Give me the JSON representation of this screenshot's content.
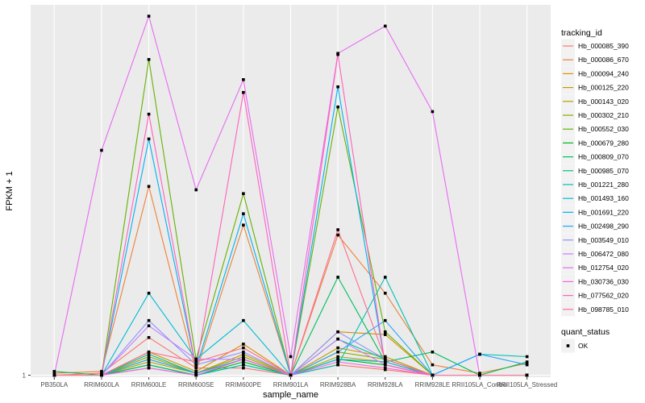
{
  "chart_data": {
    "type": "line",
    "xlabel": "sample_name",
    "ylabel": "FPKM + 1",
    "categories": [
      "PB350LA",
      "RRIM600LA",
      "RRIM600LE",
      "RRIM600SE",
      "RRIM600PE",
      "RRIM901LA",
      "RRIM928BA",
      "RRIM928LA",
      "RRIM928LE",
      "RRII105LA_Control",
      "RRII105LA_Stressed"
    ],
    "y_scale": "log",
    "y_ticks": [
      {
        "value": 1,
        "label": "1"
      }
    ],
    "ylim": [
      0.95,
      12000
    ],
    "grid": true,
    "legend_position": "right",
    "legend_title": "tracking_id",
    "series": [
      {
        "name": "Hb_000085_390",
        "color": "#F8766D",
        "values": [
          1,
          1.05,
          2.6,
          1.2,
          1.2,
          1,
          1.3,
          1.15,
          1,
          1,
          1
        ]
      },
      {
        "name": "Hb_000086_670",
        "color": "#EC8239",
        "values": [
          1.05,
          1.1,
          120,
          1.1,
          45,
          1,
          35,
          8,
          1.3,
          1.05,
          1.35
        ]
      },
      {
        "name": "Hb_000094_240",
        "color": "#DB8E00",
        "values": [
          1,
          1,
          1.8,
          1.1,
          2.2,
          1,
          3,
          2.8,
          1,
          1,
          1
        ]
      },
      {
        "name": "Hb_000125_220",
        "color": "#C79800",
        "values": [
          1,
          1,
          1.5,
          1.05,
          1.7,
          1,
          2,
          1.6,
          1,
          1,
          1
        ]
      },
      {
        "name": "Hb_000143_020",
        "color": "#AEA200",
        "values": [
          1,
          1,
          1.4,
          1.05,
          1.5,
          1,
          1.6,
          1.4,
          1,
          1,
          1
        ]
      },
      {
        "name": "Hb_000302_210",
        "color": "#8FAA00",
        "values": [
          1,
          1,
          1.6,
          1.05,
          1.6,
          1,
          1.8,
          1.5,
          1,
          1,
          1
        ]
      },
      {
        "name": "Hb_000552_030",
        "color": "#64B200",
        "values": [
          1,
          1,
          3000,
          1.5,
          100,
          1,
          900,
          3,
          1,
          1,
          1
        ]
      },
      {
        "name": "Hb_000679_280",
        "color": "#00B81B",
        "values": [
          1,
          1,
          1.3,
          1,
          1.4,
          1,
          1.5,
          1.3,
          1,
          1,
          1
        ]
      },
      {
        "name": "Hb_000809_070",
        "color": "#00BD5C",
        "values": [
          1.1,
          1,
          1.3,
          1,
          1.3,
          1,
          12,
          1.4,
          1.8,
          1,
          1.4
        ]
      },
      {
        "name": "Hb_000985_070",
        "color": "#00C08E",
        "values": [
          1,
          1,
          1.7,
          1.05,
          1.5,
          1,
          2.5,
          1.5,
          1,
          1,
          1
        ]
      },
      {
        "name": "Hb_001221_280",
        "color": "#00C1B2",
        "values": [
          1,
          1,
          1.2,
          1,
          1.3,
          1,
          1.3,
          12,
          1,
          1.7,
          1.6
        ]
      },
      {
        "name": "Hb_001493_160",
        "color": "#00BCD6",
        "values": [
          1,
          1,
          8,
          1.5,
          4,
          1,
          1.5,
          1.4,
          1,
          1,
          1
        ]
      },
      {
        "name": "Hb_001691_220",
        "color": "#00B2F3",
        "values": [
          1,
          1,
          400,
          1.2,
          60,
          1,
          1500,
          1.3,
          1,
          1,
          1
        ]
      },
      {
        "name": "Hb_002498_290",
        "color": "#1FA5FF",
        "values": [
          1,
          1,
          1.5,
          1.05,
          1.5,
          1,
          1.8,
          4,
          1,
          1.7,
          1.3
        ]
      },
      {
        "name": "Hb_003549_010",
        "color": "#8B93FF",
        "values": [
          1,
          1,
          4,
          1.3,
          1.8,
          1,
          3,
          1.5,
          1,
          1,
          1
        ]
      },
      {
        "name": "Hb_006472_080",
        "color": "#C77CFF",
        "values": [
          1,
          1,
          3.5,
          1.5,
          1.5,
          1,
          2.5,
          1.3,
          1,
          1,
          1
        ]
      },
      {
        "name": "Hb_012754_020",
        "color": "#E76BF3",
        "values": [
          1,
          300,
          9000,
          110,
          1800,
          1.6,
          3500,
          7000,
          800,
          1,
          1
        ]
      },
      {
        "name": "Hb_030736_030",
        "color": "#FA62DB",
        "values": [
          1,
          1,
          1.2,
          1,
          1.5,
          1,
          1.4,
          1.2,
          1,
          1,
          1
        ]
      },
      {
        "name": "Hb_077562_020",
        "color": "#FF62BC",
        "values": [
          1,
          1,
          750,
          1.2,
          1300,
          1,
          3400,
          1.3,
          1,
          1,
          1
        ]
      },
      {
        "name": "Hb_098785_010",
        "color": "#FF6C91",
        "values": [
          1,
          1,
          1.8,
          1.4,
          2,
          1,
          40,
          1.5,
          1,
          1,
          1
        ]
      }
    ],
    "shape_legend": {
      "title": "quant_status",
      "items": [
        {
          "label": "OK"
        }
      ]
    }
  }
}
